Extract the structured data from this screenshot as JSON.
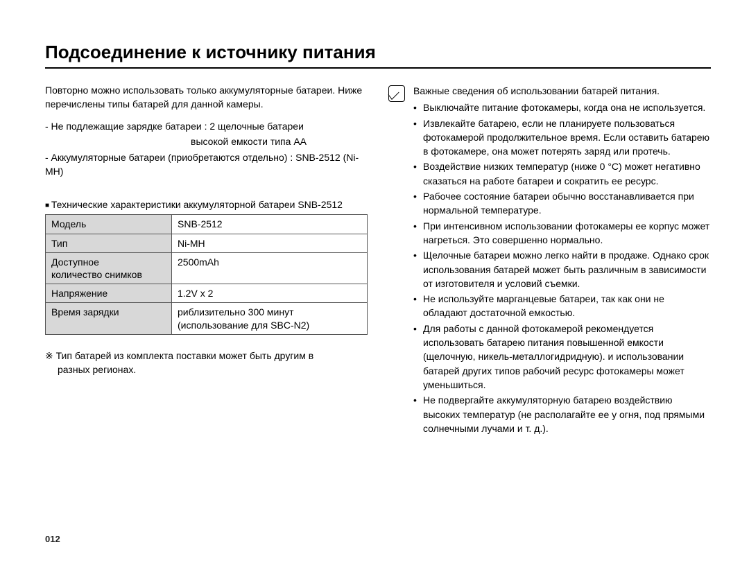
{
  "page": {
    "title": "Подсоединение к источнику питания",
    "page_number": "012"
  },
  "left": {
    "intro": "Повторно можно использовать только аккумуляторные батареи. Ниже перечислены типы батарей для данной камеры.",
    "dash1": "- Не подлежащие зарядке батареи : 2 щелочные батареи",
    "dash1_sub": "высокой емкости типа AA",
    "dash2": "- Аккумуляторные батареи (приобретаются отдельно) : SNB-2512 (Ni-MH)",
    "spec_heading": "Технические характеристики аккумуляторной батареи SNB-2512",
    "table": {
      "rows": [
        {
          "label": "Модель",
          "value": "SNB-2512"
        },
        {
          "label": "Тип",
          "value": "Ni-MH"
        },
        {
          "label": "Доступное\nколичество снимков",
          "value": "2500mAh"
        },
        {
          "label": "Напряжение",
          "value": "1.2V x 2"
        },
        {
          "label": "Время зарядки",
          "value": "риблизительно 300 минут\n(использование для SBC-N2)"
        }
      ]
    },
    "footnote_line1": "※ Тип батарей из комплекта поставки может быть другим в",
    "footnote_line2": "разных регионах."
  },
  "right": {
    "lead": "Важные сведения об использовании батарей питания.",
    "bullets": [
      "Выключайте питание фотокамеры, когда она не используется.",
      "Извлекайте батарею, если не планируете пользоваться фотокамерой продолжительное время. Если оставить батарею в фотокамере, она может потерять заряд или протечь.",
      "Воздействие низких температур (ниже 0 °C) может негативно сказаться на работе батареи и сократить ее ресурс.",
      "Рабочее состояние батареи обычно восстанавливается при нормальной температуре.",
      "При интенсивном использовании фотокамеры ее корпус может нагреться. Это совершенно нормально.",
      "Щелочные батареи можно легко найти в продаже. Однако срок использования батарей может быть различным в  зависимости от изготовителя и условий съемки.",
      "Не используйте марганцевые батареи, так как они не обладают достаточной емкостью.",
      "Для работы с данной фотокамерой рекомендуется использовать батарею питания повышенной емкости (щелочную, никель-металлогидридную). и использовании батарей других типов рабочий ресурс фотокамеры может уменьшиться.",
      "Не подвергайте аккумуляторную батарею воздействию высоких температур (не располагайте ее у огня, под прямыми солнечными лучами и т. д.)."
    ]
  },
  "colors": {
    "background": "#ffffff",
    "text": "#000000",
    "table_header_bg": "#d8d8d8",
    "border": "#555555"
  },
  "typography": {
    "title_fontsize_pt": 20,
    "body_fontsize_pt": 10.5,
    "font_family": "Arial"
  }
}
